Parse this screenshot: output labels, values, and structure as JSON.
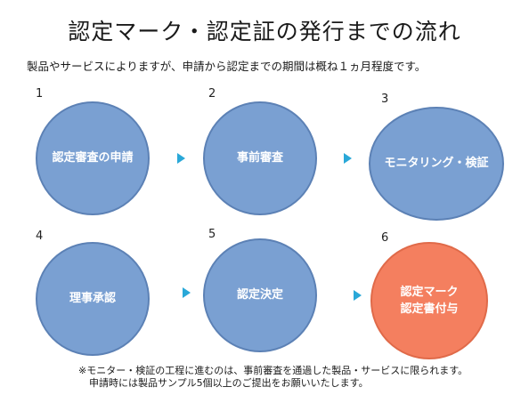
{
  "title": "認定マーク・認定証の発行までの流れ",
  "subtitle": "製品やサービスによりますが、申請から認定までの期間は概ね１ヵ月程度です。",
  "steps": [
    {
      "number": "1",
      "lines": [
        "認定審査の申請"
      ]
    },
    {
      "number": "2",
      "lines": [
        "事前審査"
      ]
    },
    {
      "number": "3",
      "lines": [
        "モニタリング・検証"
      ]
    },
    {
      "number": "4",
      "lines": [
        "理事承認"
      ]
    },
    {
      "number": "5",
      "lines": [
        "認定決定"
      ]
    },
    {
      "number": "6",
      "lines": [
        "認定マーク",
        "認定書付与"
      ]
    }
  ],
  "notes": [
    "※モニター・検証の工程に進むのは、事前審査を通過した製品・サービスに限られます。",
    "申請時には製品サンプル5個以上のご提出をお願いいたします。"
  ],
  "colors": {
    "circle_fill": "#7aa0d2",
    "circle_border": "#5c81b5",
    "final_fill": "#f47f5f",
    "arrow": "#2aa8d8"
  }
}
